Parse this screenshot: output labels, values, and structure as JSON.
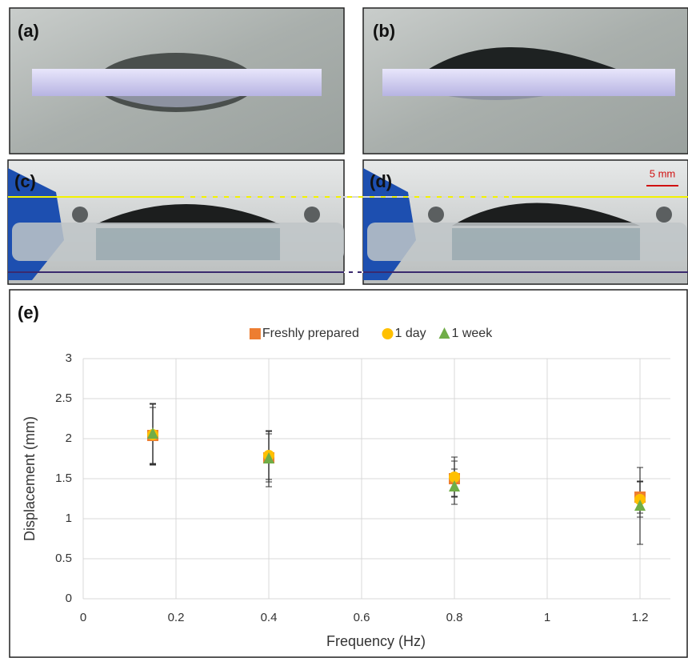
{
  "panels": [
    {
      "label": "(a)"
    },
    {
      "label": "(b)"
    },
    {
      "label": "(c)"
    },
    {
      "label": "(d)"
    }
  ],
  "scale_bar": "5 mm",
  "chart_data": {
    "type": "scatter",
    "panel_label": "(e)",
    "x_label": "Frequency (Hz)",
    "y_label": "Displacement (mm)",
    "x": [
      0.15,
      0.4,
      0.8,
      1.2
    ],
    "series": [
      {
        "name": "Freshly prepared",
        "color": "#ed7d31",
        "marker": "square",
        "values": [
          2.04,
          1.76,
          1.5,
          1.27
        ],
        "errors": [
          0.35,
          0.3,
          0.22,
          0.2
        ]
      },
      {
        "name": "1 day",
        "color": "#ffc000",
        "marker": "circle",
        "values": [
          2.05,
          1.79,
          1.52,
          1.24
        ],
        "errors": [
          0.38,
          0.3,
          0.25,
          0.22
        ]
      },
      {
        "name": "1 week",
        "color": "#70ad47",
        "marker": "triangle",
        "values": [
          2.06,
          1.75,
          1.4,
          1.16
        ],
        "errors": [
          0.38,
          0.35,
          0.22,
          0.48
        ]
      }
    ],
    "xlim": [
      0,
      1.3
    ],
    "xticks": [
      0,
      0.2,
      0.4,
      0.6,
      0.8,
      1,
      1.2
    ],
    "ylim": [
      0,
      3
    ],
    "yticks": [
      0,
      0.5,
      1,
      1.5,
      2,
      2.5,
      3
    ],
    "grid": true,
    "legend": "top"
  }
}
